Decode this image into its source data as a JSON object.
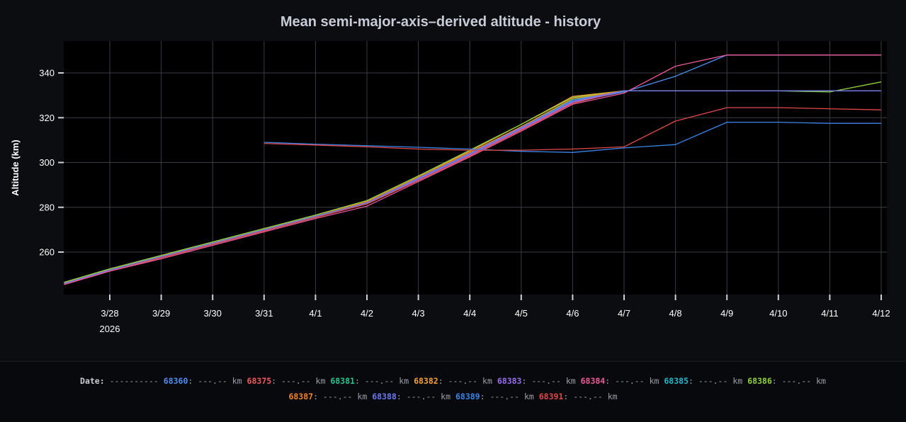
{
  "chart_data": {
    "type": "line",
    "title": "Mean semi-major-axis–derived altitude - history",
    "ylabel": "Altitude (km)",
    "ylim": [
      240,
      352
    ],
    "y_ticks": [
      260,
      280,
      300,
      320,
      340
    ],
    "x_tick_labels": [
      "3/28",
      "3/29",
      "3/30",
      "3/31",
      "4/1",
      "4/2",
      "4/3",
      "4/4",
      "4/5",
      "4/6",
      "4/7",
      "4/8",
      "4/9",
      "4/10",
      "4/11",
      "4/12"
    ],
    "x_year_label": "2026",
    "grid": true,
    "series": [
      {
        "name": "68360",
        "color": "#4f8ef0",
        "x": [
          "3/27.3",
          "3/28",
          "3/29",
          "3/30",
          "3/31",
          "4/1",
          "4/2",
          "4/3",
          "4/4",
          "4/5",
          "4/6",
          "4/7",
          "4/8",
          "4/9",
          "4/10",
          "4/11",
          "4/12"
        ],
        "y": [
          246,
          252,
          258,
          264,
          270,
          276,
          282,
          292.5,
          303.5,
          315,
          327,
          331.5,
          338.5,
          348,
          348,
          348,
          348
        ]
      },
      {
        "name": "68375",
        "color": "#ef5a5a",
        "x": [
          "3/27.3",
          "3/28",
          "3/29",
          "3/30",
          "3/31",
          "4/1",
          "4/2",
          "4/3",
          "4/4",
          "4/5",
          "4/6",
          "4/7",
          "4/8",
          "4/9",
          "4/10",
          "4/11",
          "4/12"
        ],
        "y": [
          245.5,
          251.5,
          257.5,
          263.5,
          269.5,
          275.5,
          281.5,
          292,
          303,
          314.5,
          326.5,
          332,
          332,
          332,
          332,
          332,
          332
        ]
      },
      {
        "name": "68381",
        "color": "#2fc38e",
        "x": [
          "3/27.3",
          "3/28",
          "3/29",
          "3/30",
          "3/31",
          "4/1",
          "4/2",
          "4/3",
          "4/4",
          "4/5",
          "4/6",
          "4/7",
          "4/8",
          "4/9",
          "4/10",
          "4/11",
          "4/12"
        ],
        "y": [
          246,
          252,
          258,
          264,
          270,
          276,
          282,
          293,
          304,
          315.5,
          327.5,
          332,
          332,
          332,
          332,
          332,
          332
        ]
      },
      {
        "name": "68382",
        "color": "#f6a03a",
        "x": [
          "3/27.3",
          "3/28",
          "3/29",
          "3/30",
          "3/31",
          "4/1",
          "4/2",
          "4/3",
          "4/4",
          "4/5",
          "4/6",
          "4/7",
          "4/8",
          "4/9",
          "4/10",
          "4/11",
          "4/12"
        ],
        "y": [
          246.5,
          252.5,
          258.5,
          264.5,
          270.5,
          276.5,
          283,
          294,
          305,
          317,
          329.5,
          332,
          332,
          332,
          332,
          332,
          332
        ]
      },
      {
        "name": "68383",
        "color": "#9a6cf2",
        "x": [
          "3/27.3",
          "3/28",
          "3/29",
          "3/30",
          "3/31",
          "4/1",
          "4/2",
          "4/3",
          "4/4",
          "4/5",
          "4/6",
          "4/7",
          "4/8",
          "4/9",
          "4/10",
          "4/11",
          "4/12"
        ],
        "y": [
          246,
          252,
          258,
          264,
          270,
          276,
          282,
          292.5,
          303.5,
          315,
          327,
          332,
          332,
          332,
          332,
          332,
          332
        ]
      },
      {
        "name": "68384",
        "color": "#ec5a9a",
        "x": [
          "3/27.3",
          "3/28",
          "3/29",
          "3/30",
          "3/31",
          "4/1",
          "4/2",
          "4/3",
          "4/4",
          "4/5",
          "4/6",
          "4/7",
          "4/8",
          "4/9",
          "4/10",
          "4/11",
          "4/12"
        ],
        "y": [
          245.5,
          251.5,
          257,
          263,
          269,
          275,
          280.5,
          291.5,
          302.5,
          314,
          326,
          331,
          343,
          348,
          348,
          348,
          348
        ]
      },
      {
        "name": "68385",
        "color": "#22b8cc",
        "x": [
          "3/27.3",
          "3/28",
          "3/29",
          "3/30",
          "3/31",
          "4/1",
          "4/2",
          "4/3",
          "4/4",
          "4/5",
          "4/6",
          "4/7",
          "4/8",
          "4/9",
          "4/10",
          "4/11",
          "4/12"
        ],
        "y": [
          246,
          252,
          258,
          264,
          270,
          276,
          282,
          293,
          304,
          316,
          328,
          332,
          332,
          332,
          332,
          332,
          332
        ]
      },
      {
        "name": "68386",
        "color": "#8ed23a",
        "x": [
          "3/27.3",
          "3/28",
          "3/29",
          "3/30",
          "3/31",
          "4/1",
          "4/2",
          "4/3",
          "4/4",
          "4/5",
          "4/6",
          "4/7",
          "4/8",
          "4/9",
          "4/10",
          "4/11",
          "4/12"
        ],
        "y": [
          246.5,
          252.5,
          258.5,
          264.5,
          270.5,
          276.5,
          283,
          294,
          305.5,
          317,
          329,
          332,
          332,
          332,
          332,
          331.5,
          336
        ]
      },
      {
        "name": "68387",
        "color": "#f2842e",
        "x": [
          "3/27.3",
          "3/28",
          "3/29",
          "3/30",
          "3/31",
          "4/1",
          "4/2",
          "4/3",
          "4/4",
          "4/5",
          "4/6",
          "4/7",
          "4/8",
          "4/9",
          "4/10",
          "4/11",
          "4/12"
        ],
        "y": [
          246,
          252,
          258,
          264,
          270,
          276,
          282.5,
          293.5,
          304.5,
          316,
          328.5,
          332,
          332,
          332,
          332,
          332,
          332
        ]
      },
      {
        "name": "68388",
        "color": "#6a78ee",
        "x": [
          "3/27.3",
          "3/28",
          "3/29",
          "3/30",
          "3/31",
          "4/1",
          "4/2",
          "4/3",
          "4/4",
          "4/5",
          "4/6",
          "4/7",
          "4/8",
          "4/9",
          "4/10",
          "4/11",
          "4/12"
        ],
        "y": [
          246,
          252,
          258,
          264,
          270,
          276,
          282,
          293,
          304,
          315.5,
          327.5,
          332,
          332,
          332,
          332,
          332,
          332
        ]
      },
      {
        "name": "68389",
        "color": "#3a86e8",
        "x": [
          "3/31",
          "4/1",
          "4/2",
          "4/3",
          "4/4",
          "4/5",
          "4/6",
          "4/7",
          "4/8",
          "4/9",
          "4/10",
          "4/11",
          "4/12"
        ],
        "y": [
          309,
          308.2,
          307.5,
          306.8,
          306,
          305,
          304.5,
          306.5,
          308,
          318,
          318,
          317.5,
          317.5
        ]
      },
      {
        "name": "68391",
        "color": "#e04848",
        "x": [
          "3/31",
          "4/1",
          "4/2",
          "4/3",
          "4/4",
          "4/5",
          "4/6",
          "4/7",
          "4/8",
          "4/9",
          "4/10",
          "4/11",
          "4/12"
        ],
        "y": [
          308.5,
          307.8,
          307,
          306,
          305.5,
          305.5,
          306,
          307,
          318.5,
          324.5,
          324.5,
          324,
          323.5
        ]
      }
    ]
  },
  "legend": {
    "date_label": "Date:",
    "date_value": "----------",
    "value_placeholder": "---.--",
    "unit": "km"
  }
}
